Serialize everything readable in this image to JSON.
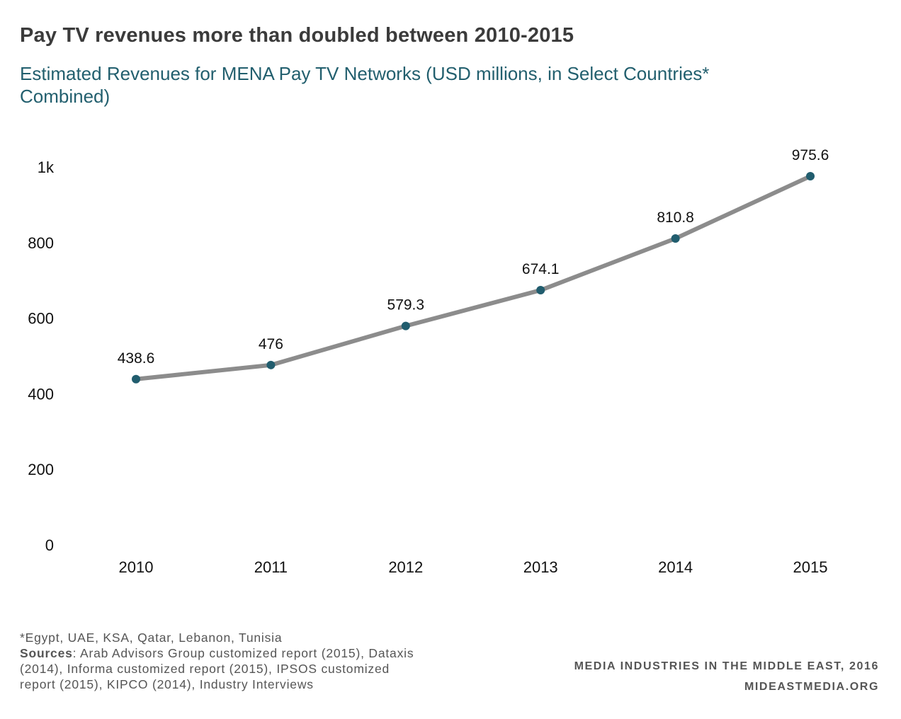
{
  "header": {
    "title": "Pay TV revenues more than doubled between 2010-2015",
    "subtitle": "Estimated Revenues for MENA Pay TV Networks (USD millions, in Select Countries* Combined)"
  },
  "chart_data": {
    "type": "line",
    "title": "Pay TV revenues more than doubled between 2010-2015",
    "subtitle": "Estimated Revenues for MENA Pay TV Networks (USD millions, in Select Countries* Combined)",
    "xlabel": "",
    "ylabel": "",
    "categories": [
      "2010",
      "2011",
      "2012",
      "2013",
      "2014",
      "2015"
    ],
    "series": [
      {
        "values": [
          438.6,
          476,
          579.3,
          674.1,
          810.8,
          975.6
        ],
        "data_labels": [
          "438.6",
          "476",
          "579.3",
          "674.1",
          "810.8",
          "975.6"
        ],
        "line_color": "#8c8c8c",
        "marker_color": "#215d6e"
      }
    ],
    "ylim": [
      0,
      1000
    ],
    "y_ticks": [
      0,
      200,
      400,
      600,
      800,
      1000
    ],
    "y_tick_labels": [
      "0",
      "200",
      "400",
      "600",
      "800",
      "1k"
    ],
    "grid": false,
    "legend": "none"
  },
  "footer": {
    "footnote": "*Egypt, UAE, KSA, Qatar, Lebanon, Tunisia",
    "sources_label": "Sources",
    "sources_text": ": Arab Advisors Group customized report (2015), Dataxis (2014), Informa customized report (2015), IPSOS customized report (2015), KIPCO (2014), Industry Interviews",
    "credit_line1": "MEDIA INDUSTRIES IN THE MIDDLE EAST, 2016",
    "credit_line2": "MIDEASTMEDIA.ORG"
  },
  "colors": {
    "title": "#3b3b3b",
    "subtitle": "#225f6e",
    "line": "#8c8c8c",
    "marker": "#215d6e",
    "footer_text": "#555555"
  }
}
